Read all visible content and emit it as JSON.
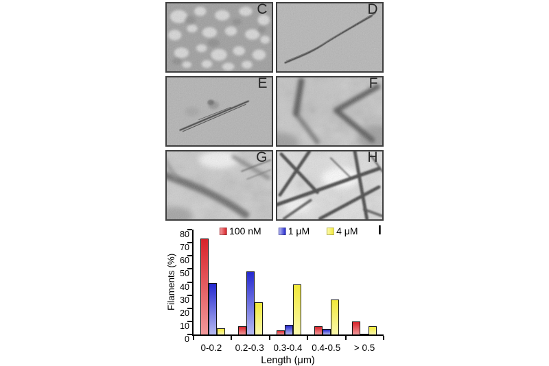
{
  "figure": {
    "panels": [
      {
        "label": "C"
      },
      {
        "label": "D"
      },
      {
        "label": "E"
      },
      {
        "label": "F"
      },
      {
        "label": "G"
      },
      {
        "label": "H"
      }
    ],
    "chart_panel_label": "I"
  },
  "chart_data": {
    "type": "bar",
    "title": "",
    "categories": [
      "0-0.2",
      "0.2-0.3",
      "0.3-0.4",
      "0.4-0.5",
      "> 0.5"
    ],
    "series": [
      {
        "name": "100 nM",
        "values": [
          73,
          6.5,
          3,
          6.5,
          10
        ],
        "color": "#d8232a",
        "color_light": "#f2999b"
      },
      {
        "name": "1 μM",
        "values": [
          39,
          48,
          7.5,
          4,
          0.5
        ],
        "color": "#2428cf",
        "color_light": "#b6baf1"
      },
      {
        "name": "4 μM",
        "values": [
          4.5,
          24.5,
          38,
          26.5,
          6.5
        ],
        "color": "#f2e93a",
        "color_light": "#fbf9ad"
      }
    ],
    "xlabel": "Length (μm)",
    "ylabel": "Filaments (%)",
    "ylim": [
      0,
      80
    ],
    "ytick_step": 10,
    "legend_position": "top-inside",
    "grid": false,
    "axis_color": "#000000"
  }
}
